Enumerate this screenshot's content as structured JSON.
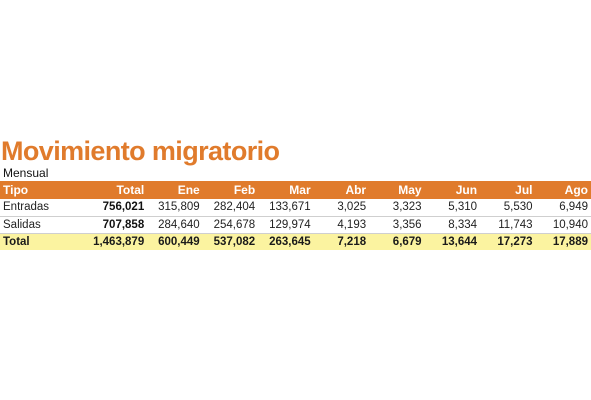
{
  "title": "Movimiento migratorio",
  "subtitle": "Mensual",
  "colors": {
    "accent": "#e07b2c",
    "total_row_bg": "#fbf3a0"
  },
  "table": {
    "headers": [
      "Tipo",
      "Total",
      "Ene",
      "Feb",
      "Mar",
      "Abr",
      "May",
      "Jun",
      "Jul",
      "Ago"
    ],
    "rows": [
      [
        "Entradas",
        "756,021",
        "315,809",
        "282,404",
        "133,671",
        "3,025",
        "3,323",
        "5,310",
        "5,530",
        "6,949"
      ],
      [
        "Salidas",
        "707,858",
        "284,640",
        "254,678",
        "129,974",
        "4,193",
        "3,356",
        "8,334",
        "11,743",
        "10,940"
      ],
      [
        "Total",
        "1,463,879",
        "600,449",
        "537,082",
        "263,645",
        "7,218",
        "6,679",
        "13,644",
        "17,273",
        "17,889"
      ]
    ]
  }
}
